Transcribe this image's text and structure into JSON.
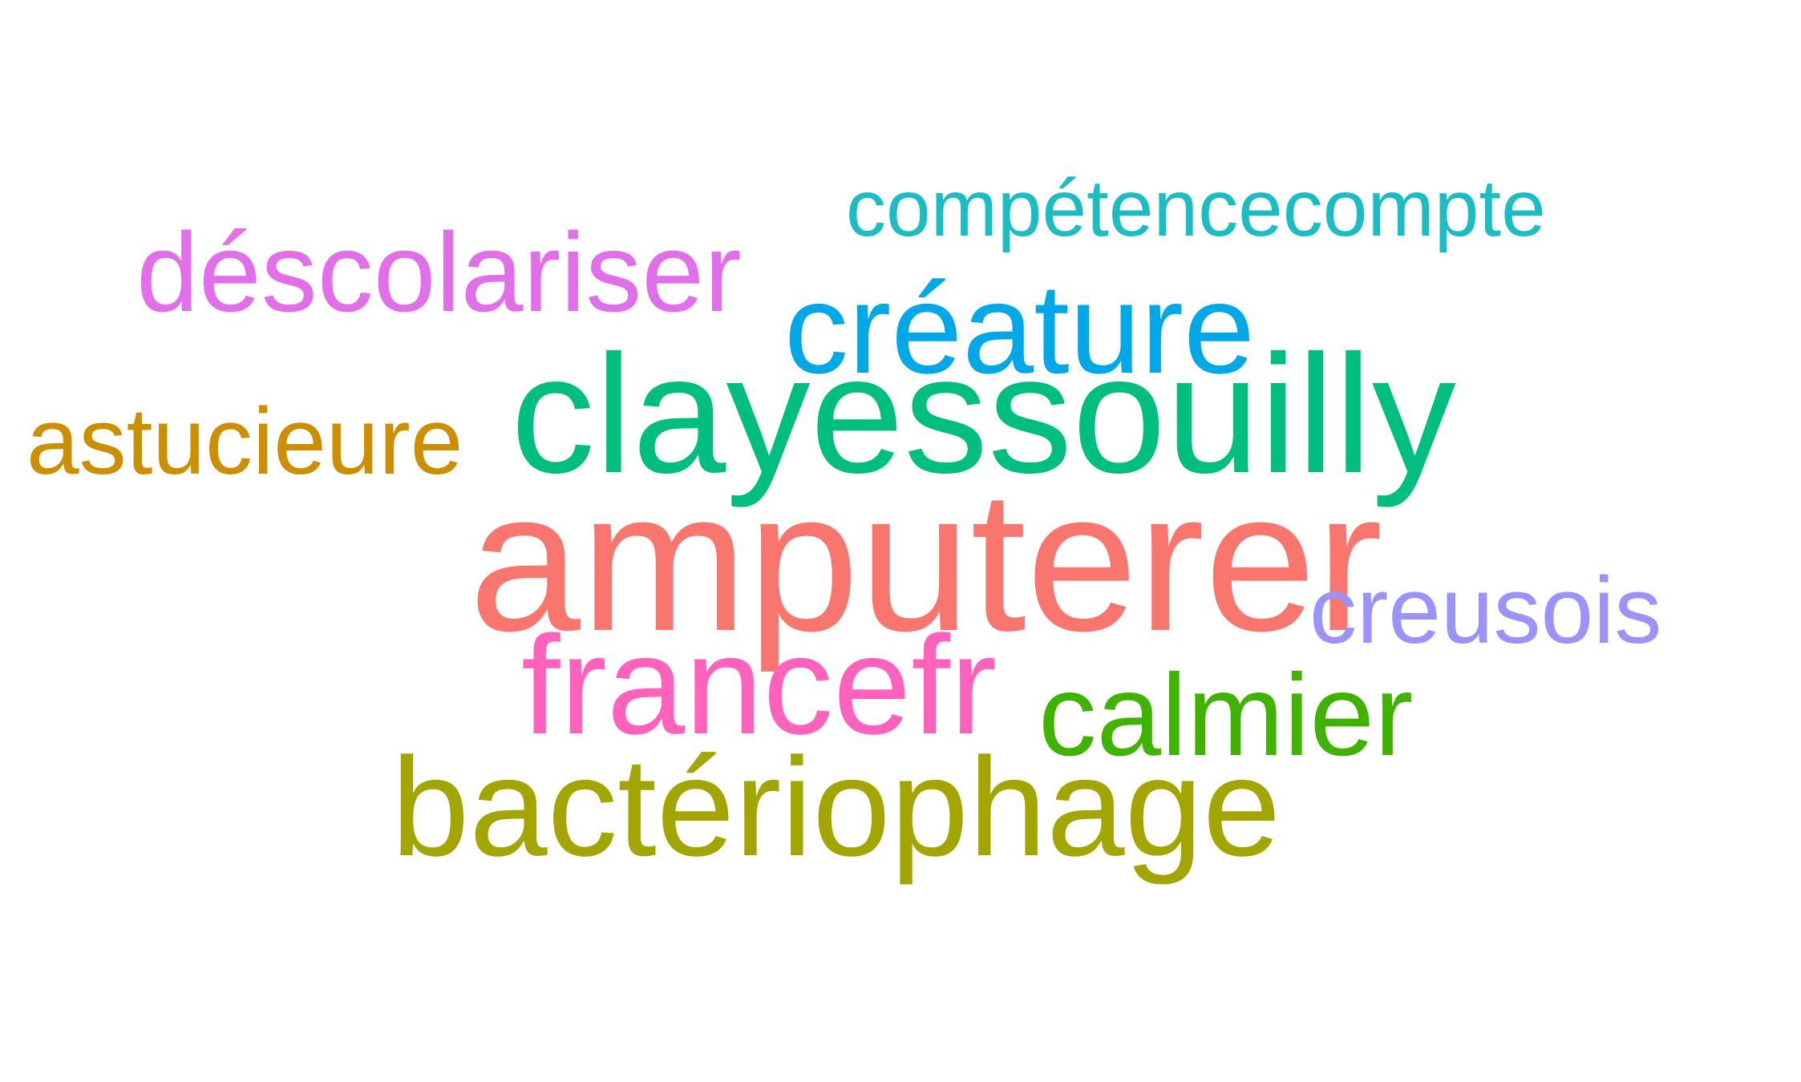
{
  "words": [
    {
      "key": "compte",
      "text": "compétencecompte",
      "color": "#1CBDC2"
    },
    {
      "key": "descol",
      "text": "déscolariser",
      "color": "#E26FEA"
    },
    {
      "key": "creature",
      "text": "créature",
      "color": "#00A8E7"
    },
    {
      "key": "clayes",
      "text": "clayessouilly",
      "color": "#00BE7F"
    },
    {
      "key": "astuc",
      "text": "astucieure",
      "color": "#CD8E00"
    },
    {
      "key": "amput",
      "text": "amputerer",
      "color": "#F8766D"
    },
    {
      "key": "creusois",
      "text": "creusois",
      "color": "#9B93F9"
    },
    {
      "key": "francefr",
      "text": "francefr",
      "color": "#FF62BC"
    },
    {
      "key": "calmier",
      "text": "calmier",
      "color": "#3FB300"
    },
    {
      "key": "bacterio",
      "text": "bactériophage",
      "color": "#A3A500"
    }
  ]
}
